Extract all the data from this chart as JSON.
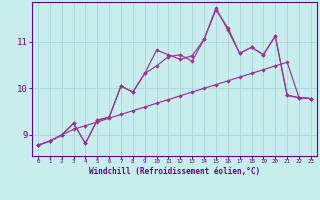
{
  "xlabel": "Windchill (Refroidissement éolien,°C)",
  "bg_color": "#c8eded",
  "grid_color": "#a8d8d8",
  "line_color": "#993399",
  "spine_color": "#660099",
  "xlim_min": -0.5,
  "xlim_max": 23.5,
  "ylim_min": 8.55,
  "ylim_max": 11.85,
  "xticks": [
    0,
    1,
    2,
    3,
    4,
    5,
    6,
    7,
    8,
    9,
    10,
    11,
    12,
    13,
    14,
    15,
    16,
    17,
    18,
    19,
    20,
    21,
    22,
    23
  ],
  "yticks": [
    9,
    10,
    11
  ],
  "line1_x": [
    0,
    1,
    2,
    3,
    4,
    5,
    6,
    7,
    8,
    9,
    10,
    11,
    12,
    13,
    14,
    15,
    16,
    17,
    18,
    19,
    20,
    21,
    22,
    23
  ],
  "line1_y": [
    8.78,
    8.87,
    9.0,
    9.12,
    9.2,
    9.28,
    9.36,
    9.44,
    9.52,
    9.6,
    9.68,
    9.76,
    9.84,
    9.92,
    10.0,
    10.08,
    10.16,
    10.24,
    10.32,
    10.4,
    10.48,
    10.56,
    9.8,
    9.78
  ],
  "line2_x": [
    0,
    1,
    2,
    3,
    4,
    5,
    6,
    7,
    8,
    9,
    10,
    11,
    12,
    13,
    14,
    15,
    16,
    17,
    18,
    19,
    20,
    21,
    22,
    23
  ],
  "line2_y": [
    8.78,
    8.87,
    9.0,
    9.25,
    8.82,
    9.32,
    9.38,
    10.05,
    9.92,
    10.32,
    10.48,
    10.68,
    10.72,
    10.58,
    11.05,
    11.68,
    11.3,
    10.75,
    10.88,
    10.72,
    11.12,
    9.85,
    9.8,
    9.78
  ],
  "line3_x": [
    0,
    1,
    2,
    3,
    4,
    5,
    6,
    7,
    8,
    9,
    10,
    11,
    12,
    13,
    14,
    15,
    16,
    17,
    18,
    19,
    20,
    21,
    22,
    23
  ],
  "line3_y": [
    8.78,
    8.87,
    9.0,
    9.25,
    8.82,
    9.32,
    9.38,
    10.05,
    9.92,
    10.32,
    10.82,
    10.72,
    10.62,
    10.7,
    11.05,
    11.72,
    11.25,
    10.75,
    10.88,
    10.72,
    11.12,
    9.85,
    9.8,
    9.78
  ]
}
